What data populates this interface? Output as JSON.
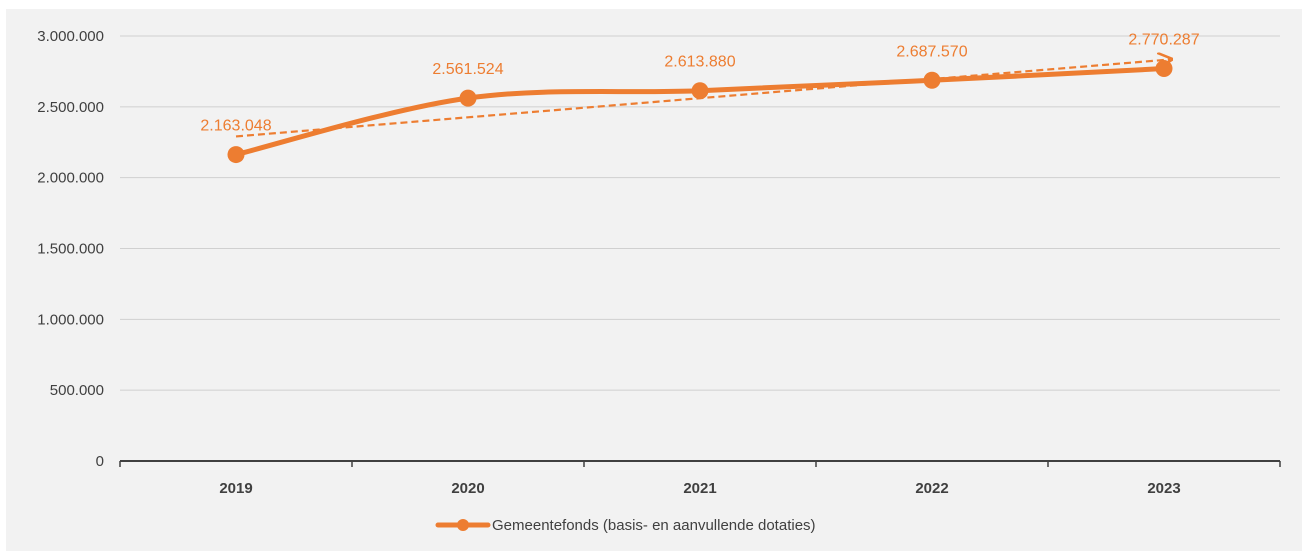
{
  "chart_data": {
    "type": "line",
    "categories": [
      "2019",
      "2020",
      "2021",
      "2022",
      "2023"
    ],
    "series": [
      {
        "name": "Gemeentefonds (basis- en aanvullende dotaties)",
        "values": [
          2163048,
          2561524,
          2613880,
          2687570,
          2770287
        ],
        "value_labels": [
          "2.163.048",
          "2.561.524",
          "2.613.880",
          "2.687.570",
          "2.770.287"
        ],
        "color": "#ed7d31",
        "smooth": true,
        "markers": true
      }
    ],
    "trendline": {
      "type": "linear",
      "style": "dashed",
      "arrow_end": true,
      "color": "#ed7d31"
    },
    "ylim": [
      0,
      3000000
    ],
    "yticks": [
      0,
      500000,
      1000000,
      1500000,
      2000000,
      2500000,
      3000000
    ],
    "ytick_labels": [
      "0",
      "500.000",
      "1.000.000",
      "1.500.000",
      "2.000.000",
      "2.500.000",
      "3.000.000"
    ],
    "grid": "horizontal",
    "legend_position": "bottom",
    "title": "",
    "xlabel": "",
    "ylabel": ""
  },
  "colors": {
    "background": "#f2f2f2",
    "gridline": "#d0d0d0",
    "axis": "#404040",
    "series": "#ed7d31"
  }
}
